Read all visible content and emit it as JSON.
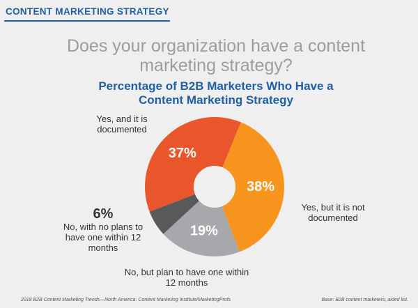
{
  "chart_data": {
    "type": "donut",
    "header": "CONTENT MARKETING STRATEGY",
    "subtitle": "Does your organization have a content marketing strategy?",
    "title": "Percentage of B2B Marketers Who Have a Content Marketing Strategy",
    "categories": [
      "Yes, and it is documented",
      "Yes, but it is not documented",
      "No, but plan to have one within 12 months",
      "No, with no plans to have one within 12 months"
    ],
    "values": [
      37,
      38,
      19,
      6
    ],
    "value_labels": [
      "37%",
      "38%",
      "19%",
      "6%"
    ],
    "colors": [
      "#e9562b",
      "#f7941e",
      "#a7a8ab",
      "#58595b"
    ],
    "source": "2018 B2B Content Marketing Trends—North America: Content Marketing Institute/MarketingProfs",
    "note": "Base: B2B content marketers; aided list."
  }
}
